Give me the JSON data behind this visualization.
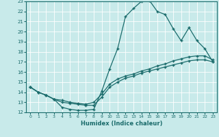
{
  "xlabel": "Humidex (Indice chaleur)",
  "ylabel": "",
  "xlim": [
    -0.5,
    23.5
  ],
  "ylim": [
    12,
    23
  ],
  "xticks": [
    0,
    1,
    2,
    3,
    4,
    5,
    6,
    7,
    8,
    9,
    10,
    11,
    12,
    13,
    14,
    15,
    16,
    17,
    18,
    19,
    20,
    21,
    22,
    23
  ],
  "yticks": [
    12,
    13,
    14,
    15,
    16,
    17,
    18,
    19,
    20,
    21,
    22,
    23
  ],
  "bg_color": "#c8eaea",
  "grid_color": "#b0d8d8",
  "line_color": "#1a6b6b",
  "line1_x": [
    0,
    1,
    2,
    3,
    4,
    5,
    6,
    7,
    8,
    9,
    10,
    11,
    12,
    13,
    14,
    15,
    16,
    17,
    18,
    19,
    20,
    21,
    22,
    23
  ],
  "line1_y": [
    14.5,
    14.0,
    13.7,
    13.3,
    12.5,
    12.3,
    12.2,
    12.2,
    12.3,
    14.1,
    16.3,
    18.3,
    21.5,
    22.3,
    23.0,
    23.1,
    22.0,
    21.7,
    20.3,
    19.1,
    20.4,
    19.1,
    18.3,
    17.0
  ],
  "line2_x": [
    0,
    1,
    2,
    3,
    4,
    5,
    6,
    7,
    8,
    9,
    10,
    11,
    12,
    13,
    14,
    15,
    16,
    17,
    18,
    19,
    20,
    21,
    22,
    23
  ],
  "line2_y": [
    14.5,
    14.0,
    13.7,
    13.3,
    13.2,
    13.0,
    12.9,
    12.8,
    13.0,
    13.8,
    14.8,
    15.3,
    15.6,
    15.8,
    16.1,
    16.3,
    16.6,
    16.8,
    17.1,
    17.3,
    17.5,
    17.6,
    17.6,
    17.2
  ],
  "line3_x": [
    0,
    1,
    2,
    3,
    4,
    5,
    6,
    7,
    8,
    9,
    10,
    11,
    12,
    13,
    14,
    15,
    16,
    17,
    18,
    19,
    20,
    21,
    22,
    23
  ],
  "line3_y": [
    14.5,
    14.0,
    13.7,
    13.3,
    13.0,
    12.9,
    12.8,
    12.7,
    12.7,
    13.5,
    14.5,
    15.0,
    15.4,
    15.6,
    15.9,
    16.1,
    16.3,
    16.5,
    16.7,
    16.9,
    17.1,
    17.2,
    17.2,
    17.0
  ]
}
